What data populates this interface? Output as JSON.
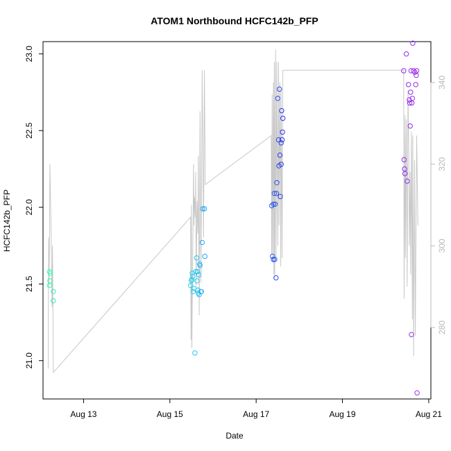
{
  "chart_data": {
    "type": "scatter",
    "title": "ATOM1 Northbound HCFC142b_PFP",
    "xlabel": "Date",
    "ylabel": "HCFC142b_PFP",
    "xlim": [
      12.06,
      21.05
    ],
    "ylim": [
      20.75,
      23.08
    ],
    "y2lim": [
      262.5,
      350.0
    ],
    "x_ticks": [
      {
        "value": 13,
        "label": "Aug 13"
      },
      {
        "value": 15,
        "label": "Aug 15"
      },
      {
        "value": 17,
        "label": "Aug 17"
      },
      {
        "value": 19,
        "label": "Aug 19"
      },
      {
        "value": 21,
        "label": "Aug 21"
      }
    ],
    "y_ticks": [
      21.0,
      21.5,
      22.0,
      22.5,
      23.0
    ],
    "y2_ticks": [
      280,
      300,
      320,
      340
    ],
    "colors": {
      "right_axis": "#b8b8b8",
      "altitude_line": "#c8c8c8",
      "frame": "#000000"
    },
    "series": [
      {
        "name": "HCFC142b_PFP",
        "axis": "left",
        "points": [
          {
            "x": 12.21,
            "y": 21.58,
            "color": "#33ffaa"
          },
          {
            "x": 12.23,
            "y": 21.57,
            "color": "#33ffaa"
          },
          {
            "x": 12.22,
            "y": 21.52,
            "color": "#33f5b0"
          },
          {
            "x": 12.21,
            "y": 21.49,
            "color": "#33f5b0"
          },
          {
            "x": 12.3,
            "y": 21.45,
            "color": "#33eab8"
          },
          {
            "x": 12.3,
            "y": 21.39,
            "color": "#33eab8"
          },
          {
            "x": 15.48,
            "y": 21.49,
            "color": "#22d3ee"
          },
          {
            "x": 15.5,
            "y": 21.52,
            "color": "#22d3ee"
          },
          {
            "x": 15.51,
            "y": 21.53,
            "color": "#22d0ee"
          },
          {
            "x": 15.52,
            "y": 21.57,
            "color": "#22d0ee"
          },
          {
            "x": 15.53,
            "y": 21.55,
            "color": "#22ccef"
          },
          {
            "x": 15.54,
            "y": 21.45,
            "color": "#22ccef"
          },
          {
            "x": 15.56,
            "y": 21.47,
            "color": "#22c8ef"
          },
          {
            "x": 15.58,
            "y": 21.05,
            "color": "#22c8ef"
          },
          {
            "x": 15.6,
            "y": 21.58,
            "color": "#22c4f0"
          },
          {
            "x": 15.62,
            "y": 21.67,
            "color": "#22c4f0"
          },
          {
            "x": 15.63,
            "y": 21.52,
            "color": "#22c0f0"
          },
          {
            "x": 15.64,
            "y": 21.58,
            "color": "#22c0f0"
          },
          {
            "x": 15.65,
            "y": 21.46,
            "color": "#22bcf1"
          },
          {
            "x": 15.66,
            "y": 21.44,
            "color": "#22bcf1"
          },
          {
            "x": 15.67,
            "y": 21.56,
            "color": "#22b8f1"
          },
          {
            "x": 15.68,
            "y": 21.43,
            "color": "#22b8f1"
          },
          {
            "x": 15.69,
            "y": 21.63,
            "color": "#22b4f2"
          },
          {
            "x": 15.7,
            "y": 21.62,
            "color": "#22b4f2"
          },
          {
            "x": 15.72,
            "y": 21.45,
            "color": "#22b0f2"
          },
          {
            "x": 15.73,
            "y": 21.45,
            "color": "#22b0f2"
          },
          {
            "x": 15.75,
            "y": 21.77,
            "color": "#22acf3"
          },
          {
            "x": 15.76,
            "y": 21.99,
            "color": "#22acf3"
          },
          {
            "x": 15.8,
            "y": 21.99,
            "color": "#22a8f3"
          },
          {
            "x": 15.81,
            "y": 21.68,
            "color": "#22a8f3"
          },
          {
            "x": 17.36,
            "y": 22.01,
            "color": "#2a5cf0"
          },
          {
            "x": 17.38,
            "y": 21.68,
            "color": "#2a5cf0"
          },
          {
            "x": 17.4,
            "y": 21.66,
            "color": "#2a58f0"
          },
          {
            "x": 17.4,
            "y": 22.02,
            "color": "#2a58f0"
          },
          {
            "x": 17.42,
            "y": 22.09,
            "color": "#2a54f0"
          },
          {
            "x": 17.43,
            "y": 21.66,
            "color": "#2a54f0"
          },
          {
            "x": 17.44,
            "y": 22.02,
            "color": "#2a50f0"
          },
          {
            "x": 17.46,
            "y": 21.54,
            "color": "#2a50f0"
          },
          {
            "x": 17.47,
            "y": 22.09,
            "color": "#2a4cf0"
          },
          {
            "x": 17.48,
            "y": 22.16,
            "color": "#2a4cf0"
          },
          {
            "x": 17.5,
            "y": 22.71,
            "color": "#2a48f0"
          },
          {
            "x": 17.52,
            "y": 22.44,
            "color": "#2a48f0"
          },
          {
            "x": 17.53,
            "y": 22.27,
            "color": "#2a44f0"
          },
          {
            "x": 17.54,
            "y": 22.77,
            "color": "#2a44f0"
          },
          {
            "x": 17.55,
            "y": 22.34,
            "color": "#2a40f0"
          },
          {
            "x": 17.56,
            "y": 22.07,
            "color": "#2a40f0"
          },
          {
            "x": 17.58,
            "y": 22.42,
            "color": "#2a3cf0"
          },
          {
            "x": 17.58,
            "y": 22.28,
            "color": "#2a3cf0"
          },
          {
            "x": 17.59,
            "y": 22.63,
            "color": "#2a38f0"
          },
          {
            "x": 17.6,
            "y": 22.44,
            "color": "#2a38f0"
          },
          {
            "x": 17.61,
            "y": 22.49,
            "color": "#2a34f0"
          },
          {
            "x": 17.62,
            "y": 22.58,
            "color": "#2a34f0"
          },
          {
            "x": 20.42,
            "y": 22.89,
            "color": "#8a2ce8"
          },
          {
            "x": 20.43,
            "y": 22.31,
            "color": "#8a2ce8"
          },
          {
            "x": 20.44,
            "y": 22.25,
            "color": "#8c2ce8"
          },
          {
            "x": 20.45,
            "y": 22.22,
            "color": "#8c2ce8"
          },
          {
            "x": 20.48,
            "y": 23.0,
            "color": "#8e2ce8"
          },
          {
            "x": 20.5,
            "y": 22.17,
            "color": "#8e2ce8"
          },
          {
            "x": 20.53,
            "y": 22.8,
            "color": "#902ce8"
          },
          {
            "x": 20.55,
            "y": 22.7,
            "color": "#902ce8"
          },
          {
            "x": 20.56,
            "y": 22.68,
            "color": "#922ce8"
          },
          {
            "x": 20.57,
            "y": 22.53,
            "color": "#922ce8"
          },
          {
            "x": 20.58,
            "y": 22.75,
            "color": "#942ce8"
          },
          {
            "x": 20.59,
            "y": 22.89,
            "color": "#942ce8"
          },
          {
            "x": 20.6,
            "y": 21.17,
            "color": "#962ce8"
          },
          {
            "x": 20.61,
            "y": 22.68,
            "color": "#962ce8"
          },
          {
            "x": 20.62,
            "y": 22.71,
            "color": "#982ce8"
          },
          {
            "x": 20.63,
            "y": 23.07,
            "color": "#982ce8"
          },
          {
            "x": 20.65,
            "y": 22.89,
            "color": "#9a2ce8"
          },
          {
            "x": 20.68,
            "y": 22.88,
            "color": "#9a2ce8"
          },
          {
            "x": 20.7,
            "y": 22.8,
            "color": "#9c2ce8"
          },
          {
            "x": 20.71,
            "y": 22.86,
            "color": "#9c2ce8"
          },
          {
            "x": 20.72,
            "y": 22.89,
            "color": "#9e2ce8"
          },
          {
            "x": 20.73,
            "y": 20.79,
            "color": "#9e2ce8"
          }
        ]
      },
      {
        "name": "altitude",
        "axis": "right",
        "x": [
          12.18,
          12.19,
          12.2,
          12.21,
          12.22,
          12.25,
          12.27,
          12.28,
          12.3,
          15.48,
          15.49,
          15.5,
          15.51,
          15.55,
          15.56,
          15.57,
          15.59,
          15.6,
          15.61,
          15.63,
          15.65,
          15.66,
          15.68,
          15.7,
          15.72,
          15.75,
          15.78,
          15.8,
          15.82,
          17.35,
          17.36,
          17.37,
          17.38,
          17.4,
          17.41,
          17.42,
          17.43,
          17.45,
          17.46,
          17.48,
          17.5,
          17.52,
          17.53,
          17.55,
          17.57,
          17.58,
          17.6,
          17.62,
          20.42,
          20.43,
          20.45,
          20.46,
          20.48,
          20.5,
          20.52,
          20.54,
          20.55,
          20.57,
          20.58,
          20.6,
          20.62,
          20.63,
          20.65,
          20.67,
          20.69,
          20.72,
          20.75
        ],
        "y": [
          270,
          302,
          290,
          300,
          320,
          302,
          285,
          300,
          269,
          307,
          277,
          310,
          275,
          320,
          305,
          312,
          307,
          318,
          290,
          311,
          303,
          322,
          283,
          333,
          291,
          343,
          302,
          343,
          315,
          327,
          298,
          337,
          296,
          340,
          293,
          345,
          292,
          348,
          297,
          345,
          300,
          345,
          305,
          340,
          295,
          338,
          297,
          343,
          343,
          287,
          332,
          297,
          331,
          290,
          338,
          322,
          300,
          318,
          293,
          328,
          282,
          327,
          273,
          321,
          278,
          327,
          305
        ]
      }
    ]
  }
}
